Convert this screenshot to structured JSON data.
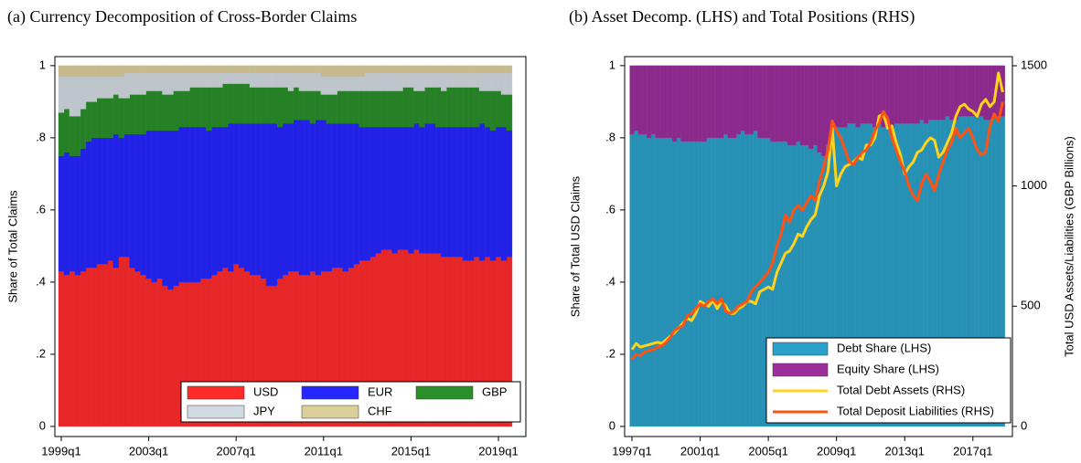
{
  "chart_data": [
    {
      "type": "bar",
      "stacked": true,
      "title": "(a)  Currency Decomposition of Cross-Border Claims",
      "y_label": "Share of Total Claims",
      "categories": [
        "1999q1",
        null,
        null,
        null,
        null,
        null,
        null,
        null,
        null,
        null,
        null,
        null,
        null,
        null,
        null,
        null,
        "2003q1",
        null,
        null,
        null,
        null,
        null,
        null,
        null,
        null,
        null,
        null,
        null,
        null,
        null,
        null,
        null,
        "2007q1",
        null,
        null,
        null,
        null,
        null,
        null,
        null,
        null,
        null,
        null,
        null,
        null,
        null,
        null,
        null,
        "2011q1",
        null,
        null,
        null,
        null,
        null,
        null,
        null,
        null,
        null,
        null,
        null,
        null,
        null,
        null,
        null,
        "2015q1",
        null,
        null,
        null,
        null,
        null,
        null,
        null,
        null,
        null,
        null,
        null,
        null,
        null,
        null,
        null,
        "2019q1",
        null,
        null
      ],
      "series": [
        {
          "name": "USD",
          "color": "#ff2b2b",
          "values": [
            0.43,
            0.42,
            0.43,
            0.42,
            0.43,
            0.44,
            0.44,
            0.45,
            0.45,
            0.46,
            0.44,
            0.47,
            0.47,
            0.44,
            0.43,
            0.42,
            0.41,
            0.4,
            0.41,
            0.39,
            0.38,
            0.39,
            0.4,
            0.4,
            0.4,
            0.4,
            0.41,
            0.41,
            0.42,
            0.43,
            0.44,
            0.43,
            0.45,
            0.44,
            0.43,
            0.42,
            0.42,
            0.41,
            0.39,
            0.39,
            0.41,
            0.42,
            0.43,
            0.43,
            0.42,
            0.42,
            0.43,
            0.42,
            0.43,
            0.43,
            0.44,
            0.44,
            0.43,
            0.44,
            0.45,
            0.46,
            0.46,
            0.47,
            0.48,
            0.49,
            0.49,
            0.48,
            0.49,
            0.49,
            0.48,
            0.49,
            0.48,
            0.48,
            0.48,
            0.48,
            0.47,
            0.47,
            0.47,
            0.47,
            0.46,
            0.46,
            0.47,
            0.46,
            0.47,
            0.46,
            0.47,
            0.46,
            0.47
          ]
        },
        {
          "name": "EUR",
          "color": "#2626ff",
          "values": [
            0.32,
            0.34,
            0.32,
            0.33,
            0.34,
            0.35,
            0.36,
            0.35,
            0.35,
            0.34,
            0.37,
            0.33,
            0.34,
            0.37,
            0.38,
            0.39,
            0.41,
            0.42,
            0.41,
            0.43,
            0.44,
            0.43,
            0.43,
            0.43,
            0.43,
            0.43,
            0.42,
            0.41,
            0.41,
            0.4,
            0.39,
            0.41,
            0.39,
            0.4,
            0.41,
            0.42,
            0.42,
            0.43,
            0.45,
            0.45,
            0.42,
            0.42,
            0.41,
            0.42,
            0.43,
            0.43,
            0.41,
            0.43,
            0.42,
            0.41,
            0.4,
            0.4,
            0.41,
            0.4,
            0.39,
            0.37,
            0.37,
            0.36,
            0.35,
            0.34,
            0.34,
            0.35,
            0.34,
            0.34,
            0.35,
            0.35,
            0.35,
            0.36,
            0.36,
            0.35,
            0.36,
            0.36,
            0.36,
            0.36,
            0.37,
            0.37,
            0.36,
            0.38,
            0.36,
            0.36,
            0.36,
            0.37,
            0.35
          ]
        },
        {
          "name": "GBP",
          "color": "#2a8f2a",
          "values": [
            0.12,
            0.12,
            0.11,
            0.11,
            0.11,
            0.11,
            0.1,
            0.11,
            0.11,
            0.11,
            0.11,
            0.11,
            0.1,
            0.11,
            0.11,
            0.11,
            0.11,
            0.11,
            0.11,
            0.1,
            0.1,
            0.11,
            0.1,
            0.1,
            0.11,
            0.11,
            0.11,
            0.12,
            0.11,
            0.11,
            0.12,
            0.11,
            0.11,
            0.11,
            0.11,
            0.1,
            0.1,
            0.1,
            0.1,
            0.1,
            0.11,
            0.1,
            0.09,
            0.09,
            0.08,
            0.08,
            0.09,
            0.08,
            0.07,
            0.08,
            0.08,
            0.09,
            0.09,
            0.09,
            0.09,
            0.1,
            0.1,
            0.1,
            0.1,
            0.1,
            0.1,
            0.1,
            0.1,
            0.11,
            0.11,
            0.09,
            0.1,
            0.1,
            0.1,
            0.11,
            0.1,
            0.11,
            0.11,
            0.11,
            0.11,
            0.11,
            0.11,
            0.09,
            0.1,
            0.11,
            0.1,
            0.09,
            0.1
          ]
        },
        {
          "name": "JPY",
          "color": "#d3dbe2",
          "values": [
            0.1,
            0.09,
            0.11,
            0.11,
            0.09,
            0.07,
            0.07,
            0.06,
            0.06,
            0.06,
            0.05,
            0.06,
            0.07,
            0.06,
            0.06,
            0.06,
            0.05,
            0.05,
            0.05,
            0.06,
            0.06,
            0.05,
            0.05,
            0.05,
            0.04,
            0.04,
            0.04,
            0.04,
            0.04,
            0.04,
            0.03,
            0.03,
            0.03,
            0.03,
            0.03,
            0.04,
            0.04,
            0.04,
            0.04,
            0.04,
            0.04,
            0.04,
            0.05,
            0.04,
            0.05,
            0.05,
            0.05,
            0.05,
            0.05,
            0.05,
            0.05,
            0.04,
            0.04,
            0.04,
            0.04,
            0.04,
            0.05,
            0.05,
            0.05,
            0.05,
            0.05,
            0.05,
            0.05,
            0.04,
            0.04,
            0.05,
            0.05,
            0.04,
            0.04,
            0.04,
            0.05,
            0.04,
            0.04,
            0.04,
            0.04,
            0.04,
            0.04,
            0.05,
            0.05,
            0.05,
            0.05,
            0.06,
            0.06
          ]
        },
        {
          "name": "CHF",
          "color": "#dbcf9a",
          "values": [
            0.03,
            0.03,
            0.03,
            0.03,
            0.03,
            0.03,
            0.03,
            0.03,
            0.03,
            0.03,
            0.03,
            0.03,
            0.02,
            0.02,
            0.02,
            0.02,
            0.02,
            0.02,
            0.02,
            0.02,
            0.02,
            0.02,
            0.02,
            0.02,
            0.02,
            0.02,
            0.02,
            0.02,
            0.02,
            0.02,
            0.02,
            0.02,
            0.02,
            0.02,
            0.02,
            0.02,
            0.02,
            0.02,
            0.02,
            0.02,
            0.02,
            0.02,
            0.02,
            0.02,
            0.02,
            0.02,
            0.02,
            0.02,
            0.03,
            0.03,
            0.03,
            0.03,
            0.03,
            0.03,
            0.03,
            0.03,
            0.02,
            0.02,
            0.02,
            0.02,
            0.02,
            0.02,
            0.02,
            0.02,
            0.02,
            0.02,
            0.02,
            0.02,
            0.02,
            0.02,
            0.02,
            0.02,
            0.02,
            0.02,
            0.02,
            0.02,
            0.02,
            0.02,
            0.02,
            0.02,
            0.02,
            0.02,
            0.02
          ]
        }
      ],
      "ylim": [
        -0.028,
        1.025
      ],
      "yticks": [
        0,
        {
          "value": 0.2,
          "label": ".2"
        },
        {
          "value": 0.4,
          "label": ".4"
        },
        {
          "value": 0.6,
          "label": ".6"
        },
        {
          "value": 0.8,
          "label": ".8"
        },
        1
      ],
      "legend": "bottom right",
      "grid": false
    },
    {
      "type": "bar",
      "stacked": true,
      "title": "(b)  Asset Decomp. (LHS) and Total Positions (RHS)",
      "y_label": "Share of Total USD Claims",
      "y2_label": "Total USD Assets/Liabilities (GBP Billions)",
      "categories": [
        "1997q1",
        null,
        null,
        null,
        null,
        null,
        null,
        null,
        null,
        null,
        null,
        null,
        null,
        null,
        null,
        null,
        "2001q1",
        null,
        null,
        null,
        null,
        null,
        null,
        null,
        null,
        null,
        null,
        null,
        null,
        null,
        null,
        null,
        "2005q1",
        null,
        null,
        null,
        null,
        null,
        null,
        null,
        null,
        null,
        null,
        null,
        null,
        null,
        null,
        null,
        "2009q1",
        null,
        null,
        null,
        null,
        null,
        null,
        null,
        null,
        null,
        null,
        null,
        null,
        null,
        null,
        null,
        "2013q1",
        null,
        null,
        null,
        null,
        null,
        null,
        null,
        null,
        null,
        null,
        null,
        null,
        null,
        null,
        null,
        "2017q1",
        null,
        null,
        null,
        null,
        null,
        null,
        null
      ],
      "series": [
        {
          "name": "Debt Share (LHS)",
          "type": "bar",
          "color": "#2ba1c9",
          "values": [
            0.81,
            0.82,
            0.81,
            0.81,
            0.8,
            0.81,
            0.8,
            0.8,
            0.8,
            0.8,
            0.79,
            0.8,
            0.79,
            0.79,
            0.79,
            0.79,
            0.79,
            0.79,
            0.8,
            0.8,
            0.8,
            0.8,
            0.81,
            0.8,
            0.8,
            0.81,
            0.82,
            0.81,
            0.81,
            0.82,
            0.8,
            0.8,
            0.8,
            0.79,
            0.79,
            0.79,
            0.79,
            0.78,
            0.78,
            0.79,
            0.78,
            0.78,
            0.77,
            0.78,
            0.76,
            0.75,
            0.78,
            0.84,
            0.83,
            0.83,
            0.83,
            0.84,
            0.84,
            0.83,
            0.84,
            0.84,
            0.84,
            0.83,
            0.84,
            0.83,
            0.84,
            0.83,
            0.84,
            0.84,
            0.84,
            0.84,
            0.84,
            0.84,
            0.85,
            0.84,
            0.85,
            0.85,
            0.85,
            0.85,
            0.86,
            0.85,
            0.85,
            0.86,
            0.86,
            0.86,
            0.86,
            0.86,
            0.86,
            0.85,
            0.85,
            0.86,
            0.85,
            0.86
          ]
        },
        {
          "name": "Equity Share (LHS)",
          "type": "bar",
          "color": "#9c2f9c",
          "values": [
            0.19,
            0.18,
            0.19,
            0.19,
            0.2,
            0.19,
            0.2,
            0.2,
            0.2,
            0.2,
            0.21,
            0.2,
            0.21,
            0.21,
            0.21,
            0.21,
            0.21,
            0.21,
            0.2,
            0.2,
            0.2,
            0.2,
            0.19,
            0.2,
            0.2,
            0.19,
            0.18,
            0.19,
            0.19,
            0.18,
            0.2,
            0.2,
            0.2,
            0.21,
            0.21,
            0.21,
            0.21,
            0.22,
            0.22,
            0.21,
            0.22,
            0.22,
            0.23,
            0.22,
            0.24,
            0.25,
            0.22,
            0.16,
            0.17,
            0.17,
            0.17,
            0.16,
            0.16,
            0.17,
            0.16,
            0.16,
            0.16,
            0.17,
            0.16,
            0.17,
            0.16,
            0.17,
            0.16,
            0.16,
            0.16,
            0.16,
            0.16,
            0.16,
            0.15,
            0.16,
            0.15,
            0.15,
            0.15,
            0.15,
            0.14,
            0.15,
            0.15,
            0.14,
            0.14,
            0.14,
            0.14,
            0.14,
            0.14,
            0.15,
            0.15,
            0.14,
            0.15,
            0.14
          ]
        },
        {
          "name": "Total Debt Assets (RHS)",
          "type": "line",
          "axis": "y2",
          "color": "#ffd21c",
          "values": [
            320,
            345,
            330,
            335,
            340,
            345,
            350,
            345,
            360,
            375,
            390,
            410,
            430,
            450,
            440,
            470,
            520,
            510,
            500,
            525,
            490,
            520,
            500,
            470,
            470,
            490,
            500,
            520,
            520,
            510,
            560,
            570,
            580,
            570,
            640,
            680,
            720,
            730,
            760,
            800,
            790,
            830,
            860,
            880,
            960,
            1000,
            1060,
            1240,
            1000,
            1050,
            1080,
            1090,
            1100,
            1120,
            1110,
            1170,
            1170,
            1200,
            1290,
            1300,
            1240,
            1250,
            1180,
            1130,
            1050,
            1080,
            1100,
            1140,
            1150,
            1180,
            1200,
            1190,
            1120,
            1140,
            1180,
            1220,
            1290,
            1330,
            1340,
            1320,
            1310,
            1290,
            1340,
            1360,
            1330,
            1350,
            1470,
            1390
          ]
        },
        {
          "name": "Total Deposit Liabilities (RHS)",
          "type": "line",
          "axis": "y2",
          "color": "#ff5212",
          "values": [
            280,
            300,
            295,
            310,
            315,
            320,
            330,
            335,
            350,
            370,
            400,
            410,
            420,
            460,
            470,
            490,
            510,
            500,
            520,
            530,
            510,
            530,
            480,
            470,
            480,
            500,
            510,
            520,
            560,
            580,
            600,
            620,
            640,
            680,
            750,
            800,
            880,
            850,
            900,
            920,
            900,
            930,
            960,
            940,
            1020,
            1080,
            1150,
            1270,
            1230,
            1200,
            1150,
            1100,
            1090,
            1120,
            1140,
            1150,
            1180,
            1230,
            1260,
            1310,
            1280,
            1200,
            1150,
            1100,
            1060,
            1000,
            960,
            940,
            1010,
            1050,
            1020,
            980,
            1050,
            1100,
            1150,
            1180,
            1240,
            1200,
            1220,
            1240,
            1200,
            1150,
            1130,
            1140,
            1250,
            1300,
            1270,
            1350
          ]
        }
      ],
      "ylim": [
        -0.028,
        1.025
      ],
      "yticks": [
        0,
        {
          "value": 0.2,
          "label": ".2"
        },
        {
          "value": 0.4,
          "label": ".4"
        },
        {
          "value": 0.6,
          "label": ".6"
        },
        {
          "value": 0.8,
          "label": ".8"
        },
        1
      ],
      "y2lim": [
        -42,
        1538
      ],
      "y2ticks": [
        0,
        500,
        1000,
        1500
      ],
      "legend": "bottom right",
      "grid": false
    }
  ]
}
